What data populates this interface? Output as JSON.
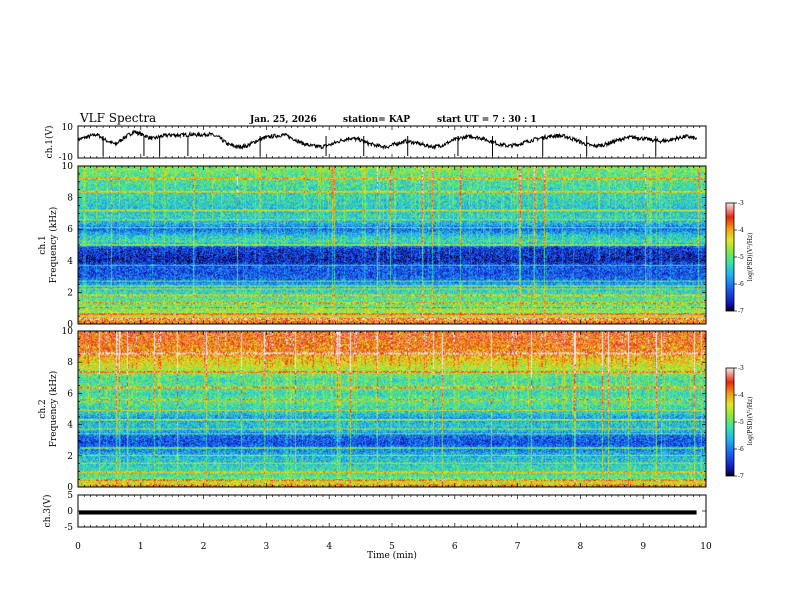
{
  "header": {
    "title": "VLF Spectra",
    "date": "Jan. 25, 2026",
    "station": "station= KAP",
    "start_ut": "start  UT =   7 : 30 : 1"
  },
  "colors": {
    "scale": [
      "#1010b0",
      "#1a5cf0",
      "#22b4f0",
      "#3ce6a0",
      "#8ce63c",
      "#e6e628",
      "#f0a014",
      "#e62814",
      "#f0c8c8"
    ]
  },
  "chart_data": [
    {
      "id": "ch1-waveform",
      "type": "line",
      "ylabel": "ch.1(V)",
      "ylim": [
        -10,
        10
      ],
      "yticks": [
        "10",
        "-10"
      ],
      "xlim": [
        0,
        10
      ],
      "y": [
        1.5,
        3.2,
        4.8,
        1.0,
        -1.5,
        3.0,
        6.5,
        4.2,
        2.0,
        3.8,
        4.5,
        4.2,
        4.8,
        4.4,
        5.0,
        3.0,
        -1.5,
        -3.0,
        -2.5,
        0.5,
        2.8,
        3.8,
        4.5,
        2.0,
        -1.0,
        -2.5,
        -3.0,
        -1.5,
        0.8,
        2.5,
        1.5,
        -1.0,
        -2.5,
        -3.0,
        -1.0,
        0.5,
        -0.5,
        -2.0,
        -3.0,
        -1.8,
        1.0,
        2.8,
        3.5,
        2.5,
        0.5,
        -1.5,
        -2.5,
        -1.5,
        0.5,
        2.0,
        3.2,
        4.0,
        3.5,
        1.5,
        -1.0,
        -2.5,
        -2.0,
        0.0,
        1.8,
        3.0,
        2.5,
        1.5,
        0.5,
        1.0,
        2.5,
        3.5,
        2.0
      ]
    },
    {
      "id": "ch1-spectrogram",
      "type": "heatmap",
      "ylabel_top": "ch.1",
      "ylabel": "Frequency (kHz)",
      "ylim": [
        0,
        10
      ],
      "yticks": [
        "0",
        "2",
        "4",
        "6",
        "8",
        "10"
      ],
      "xlim": [
        0,
        10
      ],
      "colorbar": {
        "label": "log(PSD)(V²/Hz)",
        "ticks": [
          "-3",
          "-4",
          "-5",
          "-6",
          "-7"
        ],
        "range": [
          -7,
          -3
        ]
      },
      "profile_khz": [
        0,
        0.4,
        0.8,
        1.2,
        1.6,
        2.0,
        2.4,
        2.8,
        3.2,
        3.6,
        4.0,
        4.4,
        4.8,
        5.2,
        5.6,
        6.0,
        6.4,
        6.8,
        7.2,
        7.6,
        8.0,
        8.4,
        8.8,
        9.2,
        9.6,
        10
      ],
      "profile_logpsd": [
        -3.6,
        -4.4,
        -4.8,
        -5.0,
        -5.1,
        -5.3,
        -5.6,
        -6.1,
        -6.3,
        -6.2,
        -6.6,
        -6.5,
        -6.4,
        -5.2,
        -5.5,
        -6.1,
        -5.6,
        -5.3,
        -5.5,
        -5.4,
        -5.3,
        -5.3,
        -5.2,
        -5.1,
        -5.0,
        -4.8
      ],
      "lines_khz": [
        0.3,
        0.6,
        1.0,
        1.3,
        1.8,
        2.2,
        2.4,
        2.7,
        3.7,
        5.0,
        6.1,
        6.6,
        7.2,
        8.4,
        9.2
      ]
    },
    {
      "id": "ch2-spectrogram",
      "type": "heatmap",
      "ylabel_top": "ch.2",
      "ylabel": "Frequency (kHz)",
      "ylim": [
        0,
        10
      ],
      "yticks": [
        "0",
        "2",
        "4",
        "6",
        "8",
        "10"
      ],
      "xlim": [
        0,
        10
      ],
      "colorbar": {
        "label": "log(PSD)(V²/Hz)",
        "ticks": [
          "-3",
          "-4",
          "-5",
          "-6",
          "-7"
        ],
        "range": [
          -7,
          -3
        ]
      },
      "profile_khz": [
        0,
        0.4,
        0.8,
        1.2,
        1.6,
        2.0,
        2.4,
        2.8,
        3.2,
        3.6,
        4.0,
        4.4,
        4.8,
        5.2,
        5.6,
        6.0,
        6.4,
        6.8,
        7.2,
        7.6,
        8.0,
        8.4,
        8.8,
        9.2,
        9.6,
        10
      ],
      "profile_logpsd": [
        -3.8,
        -4.9,
        -5.2,
        -5.3,
        -5.5,
        -5.6,
        -6.0,
        -6.3,
        -6.2,
        -5.6,
        -5.5,
        -5.8,
        -5.4,
        -5.2,
        -5.0,
        -5.3,
        -5.0,
        -5.2,
        -5.0,
        -4.6,
        -4.3,
        -4.1,
        -3.9,
        -3.8,
        -3.7,
        -3.7
      ],
      "lines_khz": [
        0.4,
        0.9,
        1.5,
        2.0,
        2.5,
        3.4,
        3.7,
        4.3,
        4.9,
        5.6,
        6.4,
        7.4,
        8.6
      ]
    },
    {
      "id": "ch3-waveform",
      "type": "line",
      "ylabel": "ch.3(V)",
      "ylim": [
        -5,
        5
      ],
      "yticks": [
        "5",
        "0",
        "-5"
      ],
      "xlim": [
        0,
        10
      ],
      "band": [
        -1.1,
        0.2
      ]
    }
  ],
  "time_axis": {
    "label": "Time  (min)",
    "ticks": [
      "0",
      "1",
      "2",
      "3",
      "4",
      "5",
      "6",
      "7",
      "8",
      "9",
      "10"
    ],
    "range": [
      0,
      10
    ]
  }
}
